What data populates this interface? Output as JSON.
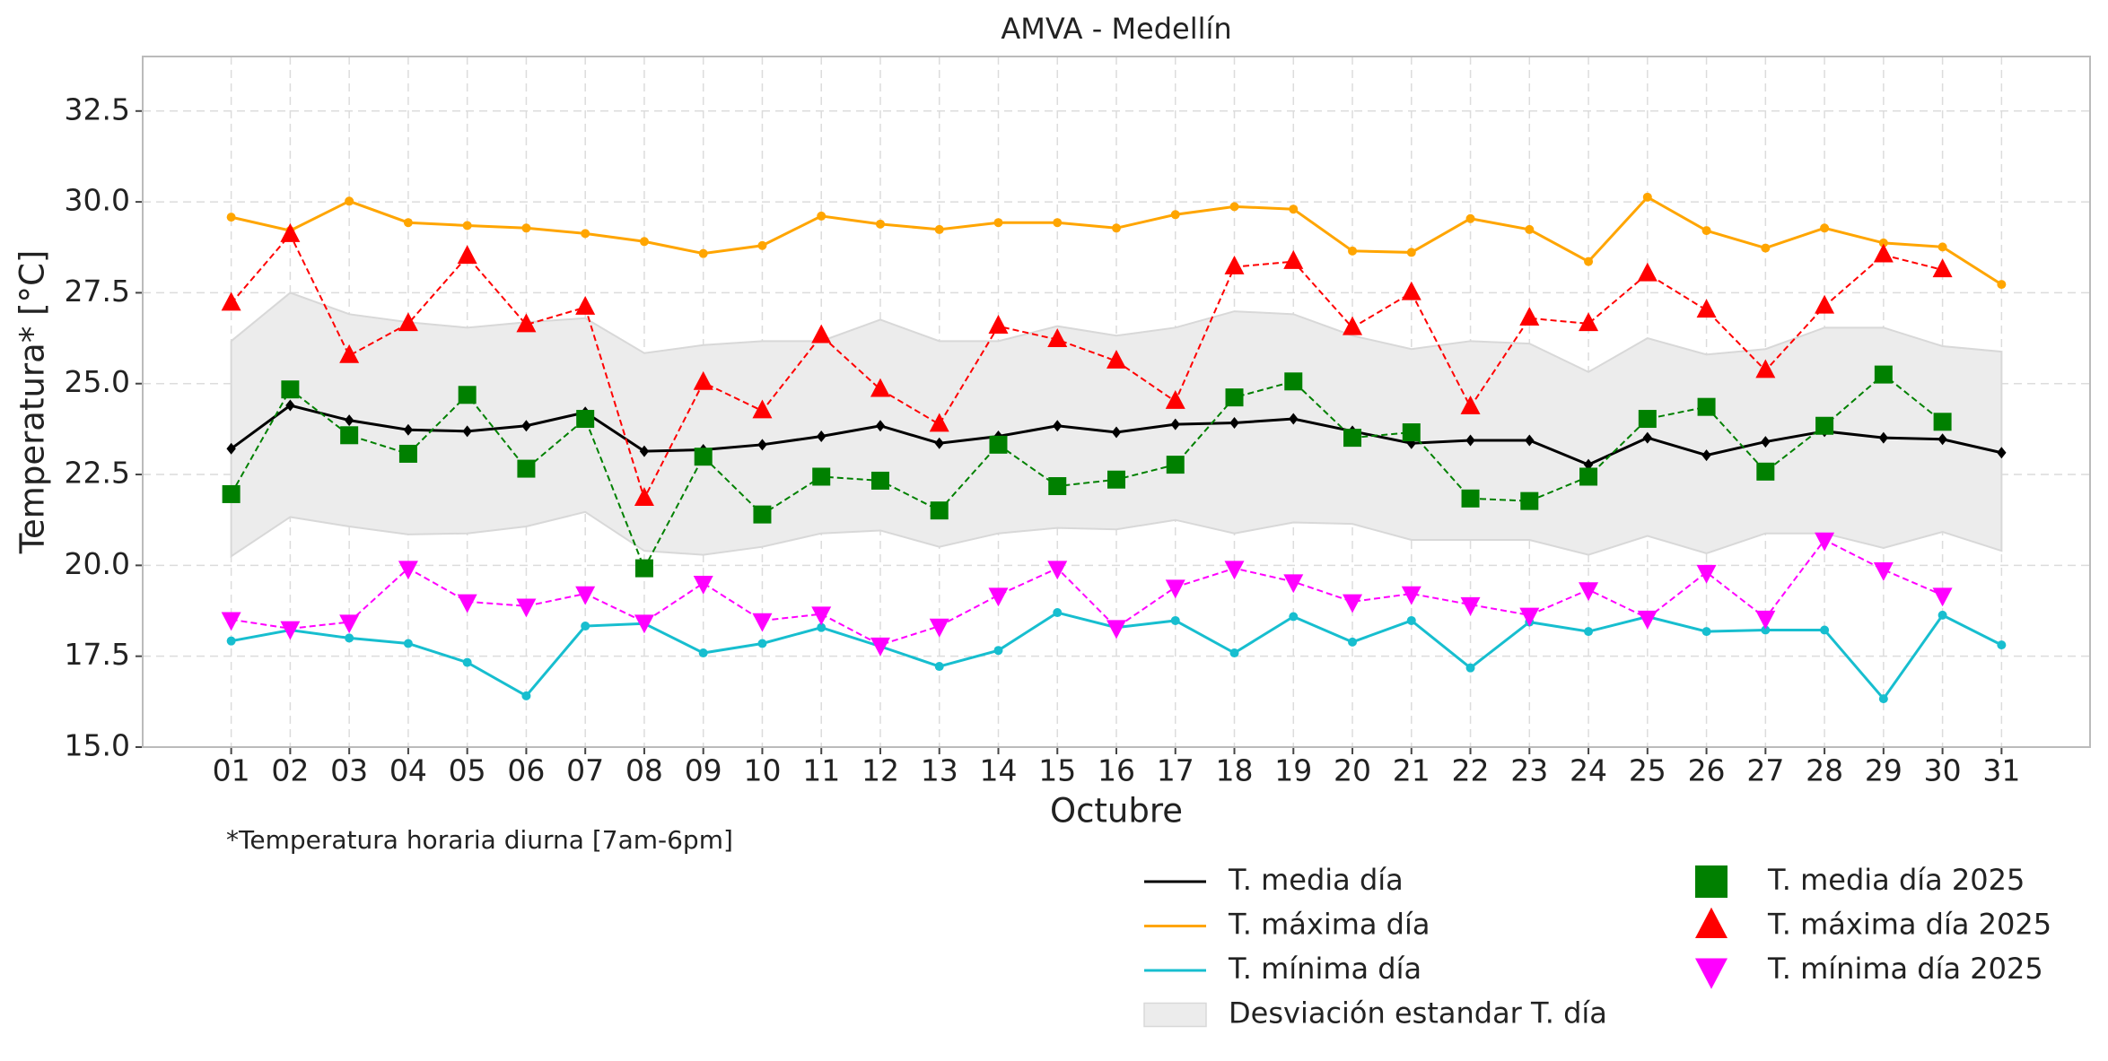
{
  "chart_data": {
    "type": "line",
    "title": "AMVA - Medellín",
    "xlabel": "Octubre",
    "ylabel": "Temperatura* [°C]",
    "note": "*Temperatura horaria diurna [7am-6pm]",
    "categories": [
      "01",
      "02",
      "03",
      "04",
      "05",
      "06",
      "07",
      "08",
      "09",
      "10",
      "11",
      "12",
      "13",
      "14",
      "15",
      "16",
      "17",
      "18",
      "19",
      "20",
      "21",
      "22",
      "23",
      "24",
      "25",
      "26",
      "27",
      "28",
      "29",
      "30",
      "31"
    ],
    "ylim": [
      15,
      34
    ],
    "yticks": [
      {
        "value": 15,
        "label": "15.0"
      },
      {
        "value": 17.5,
        "label": "17.5"
      },
      {
        "value": 20,
        "label": "20.0"
      },
      {
        "value": 22.5,
        "label": "22.5"
      },
      {
        "value": 25,
        "label": "25.0"
      },
      {
        "value": 27.5,
        "label": "27.5"
      },
      {
        "value": 30,
        "label": "30.0"
      },
      {
        "value": 32.5,
        "label": "32.5"
      }
    ],
    "grid": true,
    "band": {
      "name": "Desviación estandar T. día",
      "color": "#ececec",
      "upper": [
        26.17,
        27.5,
        26.91,
        26.69,
        26.54,
        26.69,
        26.8,
        25.84,
        26.06,
        26.17,
        26.17,
        26.76,
        26.17,
        26.17,
        26.58,
        26.32,
        26.54,
        26.99,
        26.91,
        26.32,
        25.95,
        26.17,
        26.1,
        25.32,
        26.25,
        25.8,
        25.95,
        26.54,
        26.54,
        26.03,
        25.88
      ],
      "lower": [
        20.25,
        21.33,
        21.07,
        20.85,
        20.88,
        21.07,
        21.47,
        20.4,
        20.29,
        20.51,
        20.88,
        20.96,
        20.51,
        20.88,
        21.03,
        20.99,
        21.25,
        20.88,
        21.18,
        21.14,
        20.7,
        20.7,
        20.7,
        20.29,
        20.81,
        20.33,
        20.88,
        20.88,
        20.48,
        20.92,
        20.4
      ]
    },
    "series": [
      {
        "name": "T. media día",
        "color": "#000000",
        "linestyle": "solid",
        "marker": "diamond",
        "values": [
          23.21,
          24.4,
          23.99,
          23.73,
          23.69,
          23.84,
          24.21,
          23.14,
          23.18,
          23.32,
          23.55,
          23.84,
          23.36,
          23.55,
          23.84,
          23.66,
          23.88,
          23.92,
          24.03,
          23.69,
          23.36,
          23.44,
          23.44,
          22.77,
          23.51,
          23.03,
          23.4,
          23.69,
          23.51,
          23.47,
          23.1
        ]
      },
      {
        "name": "T. máxima día",
        "color": "#ffa500",
        "linestyle": "solid",
        "marker": "circle",
        "values": [
          29.58,
          29.21,
          30.02,
          29.43,
          29.35,
          29.28,
          29.13,
          28.91,
          28.58,
          28.8,
          29.61,
          29.39,
          29.24,
          29.43,
          29.43,
          29.28,
          29.65,
          29.87,
          29.8,
          28.65,
          28.61,
          29.54,
          29.24,
          28.36,
          30.13,
          29.21,
          28.73,
          29.28,
          28.87,
          28.76,
          27.73
        ]
      },
      {
        "name": "T. mínima día",
        "color": "#17becf",
        "linestyle": "solid",
        "marker": "circle",
        "values": [
          17.92,
          18.22,
          18.0,
          17.85,
          17.33,
          16.41,
          18.33,
          18.4,
          17.59,
          17.85,
          18.29,
          17.77,
          17.22,
          17.66,
          18.7,
          18.29,
          18.48,
          17.59,
          18.59,
          17.89,
          18.48,
          17.18,
          18.44,
          18.18,
          18.59,
          18.18,
          18.22,
          18.22,
          16.33,
          18.63,
          17.81
        ]
      },
      {
        "name": "T. media día 2025",
        "color": "#008000",
        "linestyle": "dashed",
        "marker": "square",
        "values": [
          21.96,
          24.84,
          23.58,
          23.07,
          24.69,
          22.66,
          24.03,
          19.92,
          22.99,
          21.4,
          22.44,
          22.33,
          21.51,
          23.32,
          22.18,
          22.36,
          22.77,
          24.62,
          25.06,
          23.51,
          23.66,
          21.84,
          21.77,
          22.44,
          24.03,
          24.36,
          22.58,
          23.84,
          25.25,
          23.95,
          null
        ]
      },
      {
        "name": "T. máxima día 2025",
        "color": "#ff0000",
        "linestyle": "dashed",
        "marker": "triangle-up",
        "values": [
          27.21,
          29.1,
          25.77,
          26.65,
          28.5,
          26.62,
          27.1,
          21.84,
          25.03,
          24.25,
          26.32,
          24.84,
          23.88,
          26.58,
          26.21,
          25.62,
          24.51,
          28.21,
          28.36,
          26.54,
          27.5,
          24.36,
          26.8,
          26.65,
          28.02,
          27.02,
          25.36,
          27.13,
          28.54,
          28.13,
          null
        ]
      },
      {
        "name": "T. mínima día 2025",
        "color": "#ff00ff",
        "linestyle": "dashed",
        "marker": "triangle-down",
        "values": [
          18.51,
          18.26,
          18.44,
          19.92,
          19.0,
          18.88,
          19.22,
          18.44,
          19.51,
          18.48,
          18.66,
          17.81,
          18.33,
          19.18,
          19.92,
          18.29,
          19.4,
          19.92,
          19.55,
          19.0,
          19.22,
          18.92,
          18.63,
          19.33,
          18.55,
          19.81,
          18.55,
          20.7,
          19.88,
          19.18,
          null
        ]
      }
    ]
  }
}
